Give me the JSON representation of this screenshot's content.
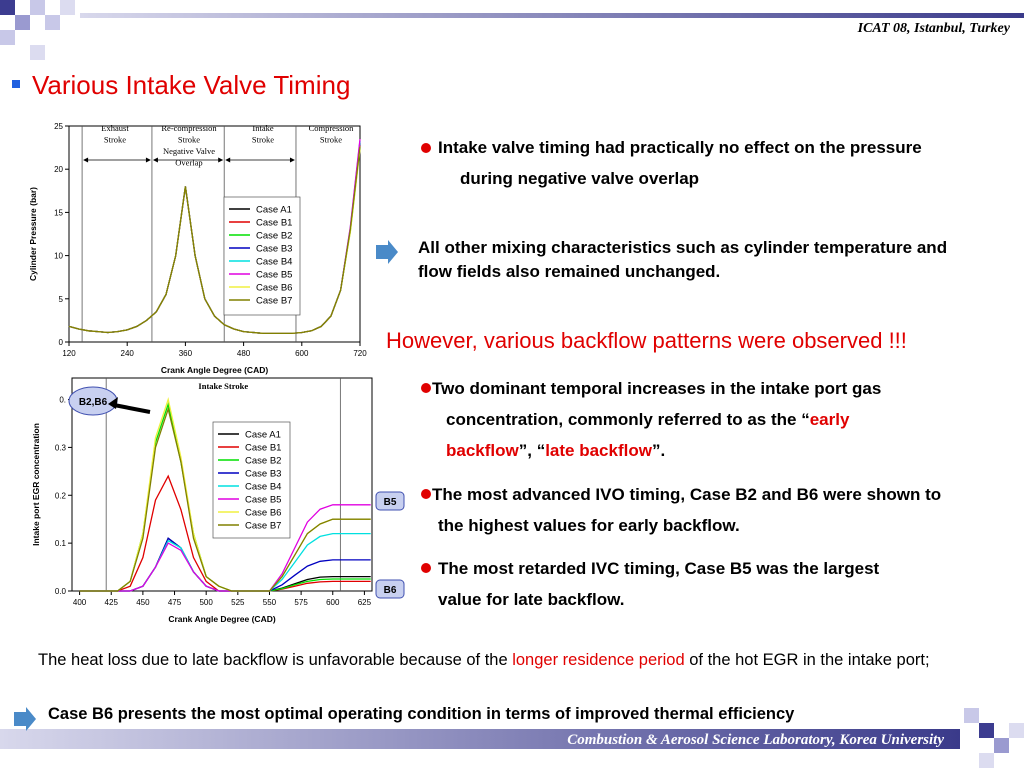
{
  "header": {
    "conference": "ICAT 08, Istanbul, Turkey"
  },
  "title": "Various Intake Valve Timing",
  "notes": [
    {
      "runs": [
        {
          "text": "Intake valve timing had practically no effect on the pressure during negative valve overlap",
          "color": "#000000"
        }
      ]
    },
    {
      "runs": [
        {
          "text": "All other mixing characteristics such as cylinder temperature and flow fields also remained unchanged.",
          "color": "#000000"
        }
      ]
    },
    {
      "runs": [
        {
          "text": "However, various backflow patterns were observed !!!",
          "color": "#e00000"
        }
      ]
    },
    {
      "runs": [
        {
          "text": "Two dominant temporal increases in the intake port gas concentration, commonly referred to as the “",
          "color": "#000000"
        },
        {
          "text": "early backflow",
          "color": "#e00000"
        },
        {
          "text": "”, “",
          "color": "#000000"
        },
        {
          "text": "late backflow",
          "color": "#e00000"
        },
        {
          "text": "”.",
          "color": "#000000"
        }
      ]
    },
    {
      "runs": [
        {
          "text": "The most advanced IVO timing, Case B2 and B6 were shown to the highest values for early backflow.",
          "color": "#000000"
        }
      ]
    },
    {
      "runs": [
        {
          "text": "The most  retarded IVC timing, Case B5 was the largest value for late backflow.",
          "color": "#000000"
        }
      ]
    },
    {
      "runs": [
        {
          "text": "The heat loss due to late backflow is unfavorable because of the ",
          "color": "#000000"
        },
        {
          "text": "longer residence period",
          "color": "#e00000"
        },
        {
          "text": " of the hot EGR in the intake port;",
          "color": "#000000"
        }
      ]
    },
    {
      "runs": [
        {
          "text": "Case B6 presents the most optimal operating condition in terms of improved thermal efficiency",
          "color": "#000000"
        }
      ]
    }
  ],
  "footer": "Combustion & Aerosol Science Laboratory, Korea University",
  "chart_data": [
    {
      "type": "line",
      "x_label": "Crank Angle Degree (CAD)",
      "y_label": "Cylinder Pressure (bar)",
      "xlim": [
        120,
        720
      ],
      "ylim": [
        0,
        25
      ],
      "xticks": [
        120,
        240,
        360,
        480,
        600,
        720
      ],
      "yticks": [
        0,
        5,
        10,
        15,
        20,
        25
      ],
      "stroke_boundaries": [
        147,
        291,
        440,
        588
      ],
      "annotations": [
        {
          "lines": [
            "Exhaust",
            "Stroke"
          ]
        },
        {
          "lines": [
            "Re-compression",
            "Stroke",
            "Negative Valve",
            "Overlap"
          ]
        },
        {
          "lines": [
            "Intake",
            "Stroke"
          ]
        },
        {
          "lines": [
            "Compression",
            "Stroke"
          ]
        }
      ],
      "x": [
        120,
        140,
        160,
        180,
        200,
        220,
        240,
        260,
        280,
        300,
        320,
        340,
        360,
        380,
        400,
        420,
        440,
        460,
        480,
        500,
        520,
        540,
        560,
        580,
        600,
        620,
        640,
        660,
        680,
        700,
        720
      ],
      "series": [
        {
          "name": "Case A1",
          "color": "#000000",
          "values": [
            1.8,
            1.5,
            1.3,
            1.2,
            1.1,
            1.2,
            1.4,
            1.8,
            2.5,
            3.5,
            5.5,
            10,
            18,
            10,
            5,
            3,
            2,
            1.5,
            1.2,
            1.1,
            1,
            1,
            1,
            1,
            1.1,
            1.3,
            1.8,
            3,
            6,
            13,
            23
          ]
        },
        {
          "name": "Case B1",
          "color": "#e00000",
          "values": [
            1.8,
            1.5,
            1.3,
            1.2,
            1.1,
            1.2,
            1.4,
            1.8,
            2.5,
            3.5,
            5.5,
            10,
            18,
            10,
            5,
            3,
            2,
            1.5,
            1.2,
            1.1,
            1,
            1,
            1,
            1,
            1.1,
            1.3,
            1.8,
            3,
            6,
            13,
            22.8
          ]
        },
        {
          "name": "Case B2",
          "color": "#00e000",
          "values": [
            1.8,
            1.5,
            1.3,
            1.2,
            1.1,
            1.2,
            1.4,
            1.8,
            2.5,
            3.5,
            5.5,
            10,
            18,
            10,
            5,
            3,
            2,
            1.5,
            1.2,
            1.1,
            1,
            1,
            1,
            1,
            1.1,
            1.3,
            1.8,
            3,
            6,
            12.8,
            22.5
          ]
        },
        {
          "name": "Case B3",
          "color": "#0000c0",
          "values": [
            1.8,
            1.5,
            1.3,
            1.2,
            1.1,
            1.2,
            1.4,
            1.8,
            2.5,
            3.5,
            5.5,
            10,
            18,
            10,
            5,
            3,
            2,
            1.5,
            1.2,
            1.1,
            1,
            1,
            1,
            1,
            1.1,
            1.3,
            1.8,
            3,
            6,
            13,
            23.2
          ]
        },
        {
          "name": "Case B4",
          "color": "#00e0e0",
          "values": [
            1.8,
            1.5,
            1.3,
            1.2,
            1.1,
            1.2,
            1.4,
            1.8,
            2.5,
            3.5,
            5.5,
            10,
            18,
            10,
            5,
            3,
            2,
            1.5,
            1.2,
            1.1,
            1,
            1,
            1,
            1,
            1.1,
            1.3,
            1.8,
            3,
            6,
            13.2,
            23.3
          ]
        },
        {
          "name": "Case B5",
          "color": "#e000e0",
          "values": [
            1.8,
            1.5,
            1.3,
            1.2,
            1.1,
            1.2,
            1.4,
            1.8,
            2.5,
            3.5,
            5.5,
            10,
            18,
            10,
            5,
            3,
            2,
            1.5,
            1.2,
            1.1,
            1,
            1,
            1,
            1,
            1.1,
            1.3,
            1.8,
            3,
            6,
            13.3,
            23.5
          ]
        },
        {
          "name": "Case B6",
          "color": "#f0f040",
          "values": [
            1.8,
            1.5,
            1.3,
            1.2,
            1.1,
            1.2,
            1.4,
            1.8,
            2.5,
            3.5,
            5.5,
            10,
            18,
            10,
            5,
            3,
            2,
            1.5,
            1.2,
            1.1,
            1,
            1,
            1,
            1,
            1.1,
            1.3,
            1.8,
            3,
            6,
            12.7,
            22.3
          ]
        },
        {
          "name": "Case B7",
          "color": "#808000",
          "values": [
            1.8,
            1.5,
            1.3,
            1.2,
            1.1,
            1.2,
            1.4,
            1.8,
            2.5,
            3.5,
            5.5,
            10,
            18,
            10,
            5,
            3,
            2,
            1.5,
            1.2,
            1.1,
            1,
            1,
            1,
            1,
            1.1,
            1.3,
            1.8,
            3,
            6,
            13,
            22.6
          ]
        }
      ]
    },
    {
      "type": "line",
      "x_label": "Crank Angle Degree (CAD)",
      "y_label": "Intake port EGR concentration",
      "xlim": [
        394,
        631
      ],
      "ylim": [
        0,
        0.445
      ],
      "xticks": [
        400,
        425,
        450,
        475,
        500,
        525,
        550,
        575,
        600,
        625
      ],
      "yticks": [
        {
          "value": 0,
          "label": "0.0"
        },
        0.1,
        0.2,
        0.3,
        {
          "value": 0.4,
          "label": "0."
        }
      ],
      "stroke_boundaries": [
        421,
        606
      ],
      "annotations": [
        {
          "lines": [
            "Intake Stroke"
          ]
        },
        {
          "lines": [
            "B2,B6"
          ]
        },
        {
          "lines": [
            "B5"
          ]
        },
        {
          "lines": [
            "B6"
          ]
        }
      ],
      "x": [
        400,
        410,
        420,
        430,
        440,
        450,
        460,
        470,
        480,
        490,
        500,
        510,
        520,
        530,
        540,
        550,
        560,
        570,
        580,
        590,
        600,
        610,
        620,
        630
      ],
      "series": [
        {
          "name": "Case A1",
          "color": "#000000",
          "values": [
            0,
            0,
            0,
            0,
            0,
            0.01,
            0.05,
            0.11,
            0.09,
            0.04,
            0.01,
            0,
            0,
            0,
            0,
            0,
            0.006,
            0.015,
            0.024,
            0.029,
            0.03,
            0.03,
            0.03,
            0.03
          ]
        },
        {
          "name": "Case B1",
          "color": "#e00000",
          "values": [
            0,
            0,
            0,
            0,
            0.01,
            0.07,
            0.19,
            0.24,
            0.17,
            0.07,
            0.02,
            0,
            0,
            0,
            0,
            0,
            0.004,
            0.01,
            0.016,
            0.019,
            0.02,
            0.02,
            0.02,
            0.02
          ]
        },
        {
          "name": "Case B2",
          "color": "#00e000",
          "values": [
            0,
            0,
            0,
            0,
            0.02,
            0.12,
            0.31,
            0.39,
            0.27,
            0.12,
            0.03,
            0.01,
            0,
            0,
            0,
            0,
            0.005,
            0.013,
            0.02,
            0.024,
            0.025,
            0.025,
            0.025,
            0.025
          ]
        },
        {
          "name": "Case B3",
          "color": "#0000c0",
          "values": [
            0,
            0,
            0,
            0,
            0,
            0.01,
            0.05,
            0.11,
            0.09,
            0.04,
            0.01,
            0,
            0,
            0,
            0,
            0,
            0.013,
            0.033,
            0.052,
            0.062,
            0.065,
            0.065,
            0.065,
            0.065
          ]
        },
        {
          "name": "Case B4",
          "color": "#00e0e0",
          "values": [
            0,
            0,
            0,
            0,
            0,
            0.01,
            0.05,
            0.105,
            0.09,
            0.04,
            0.01,
            0,
            0,
            0,
            0,
            0,
            0.024,
            0.06,
            0.096,
            0.114,
            0.12,
            0.12,
            0.12,
            0.12
          ]
        },
        {
          "name": "Case B5",
          "color": "#e000e0",
          "values": [
            0,
            0,
            0,
            0,
            0,
            0.01,
            0.05,
            0.1,
            0.085,
            0.04,
            0.01,
            0,
            0,
            0,
            0,
            0,
            0.036,
            0.09,
            0.144,
            0.171,
            0.18,
            0.18,
            0.18,
            0.18
          ]
        },
        {
          "name": "Case B6",
          "color": "#f0f040",
          "values": [
            0,
            0,
            0,
            0,
            0.02,
            0.12,
            0.32,
            0.4,
            0.28,
            0.12,
            0.03,
            0.01,
            0,
            0,
            0,
            0,
            0.03,
            0.075,
            0.12,
            0.14,
            0.15,
            0.15,
            0.15,
            0.15
          ]
        },
        {
          "name": "Case B7",
          "color": "#808000",
          "values": [
            0,
            0,
            0,
            0,
            0.02,
            0.11,
            0.3,
            0.38,
            0.27,
            0.11,
            0.03,
            0.01,
            0,
            0,
            0,
            0,
            0.03,
            0.075,
            0.12,
            0.14,
            0.15,
            0.15,
            0.15,
            0.15
          ]
        }
      ]
    }
  ]
}
